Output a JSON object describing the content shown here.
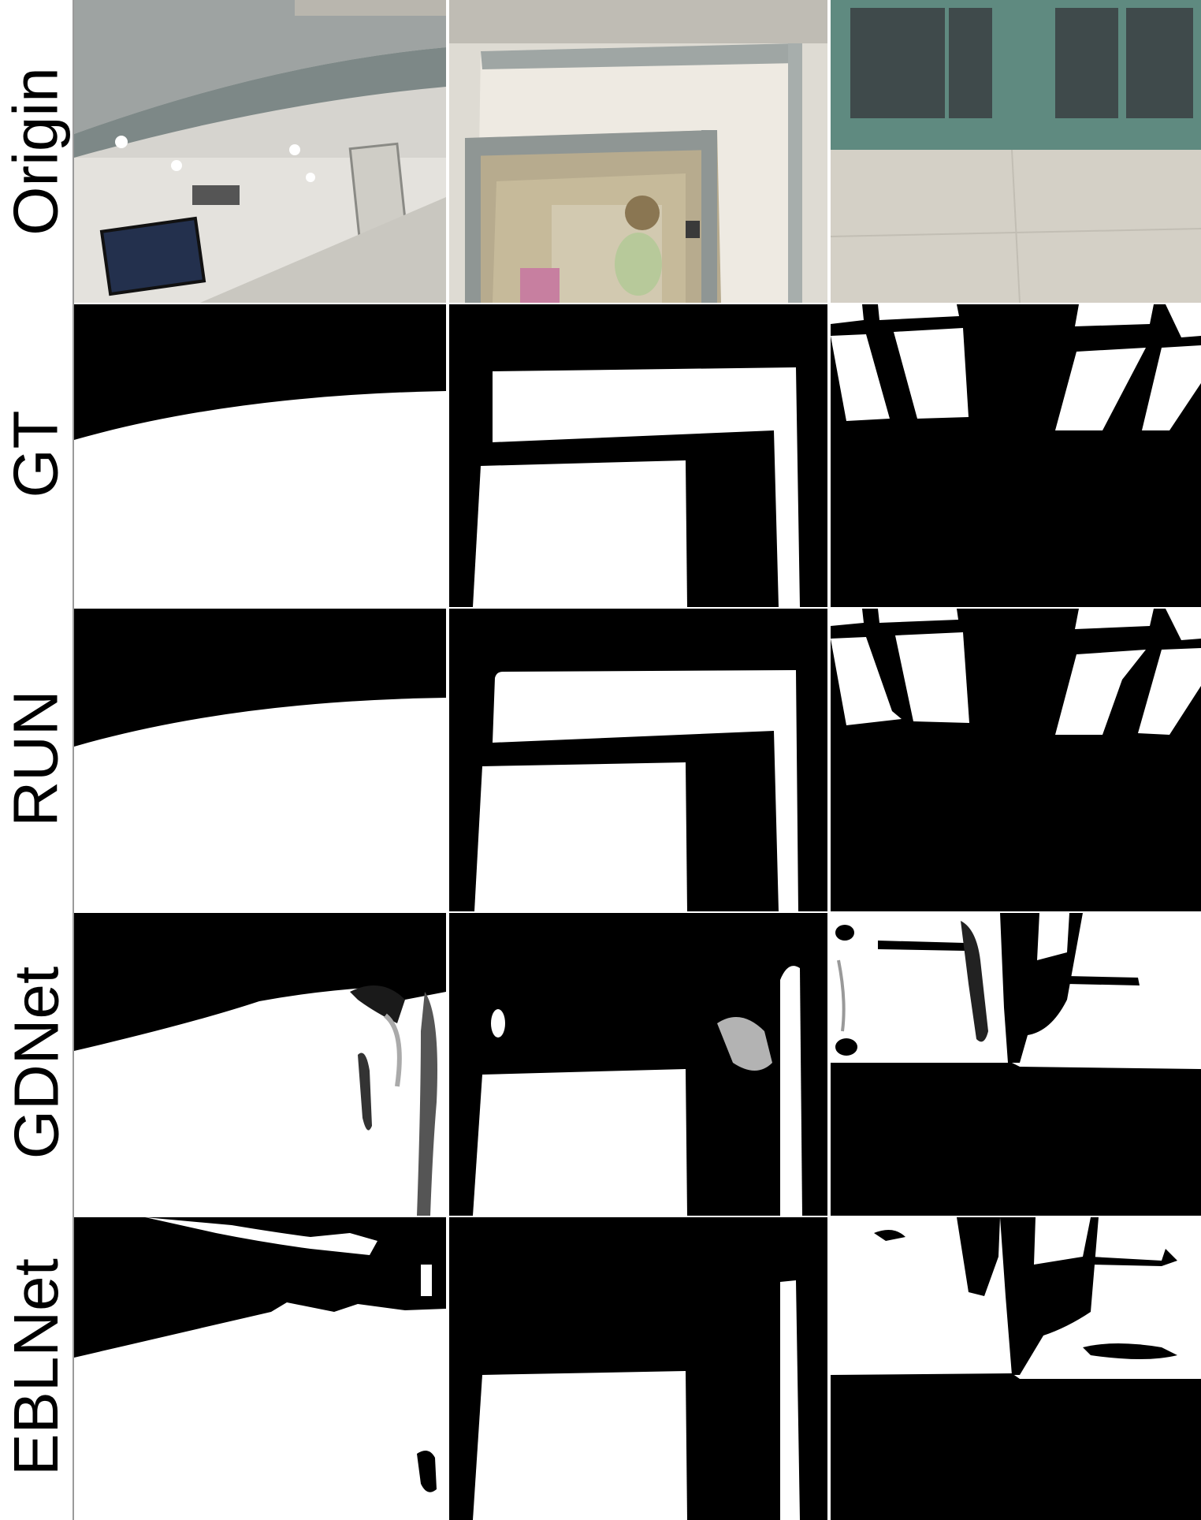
{
  "figure": {
    "rows": [
      {
        "label": "Origin"
      },
      {
        "label": "GT"
      },
      {
        "label": "RUN"
      },
      {
        "label": "GDNet"
      },
      {
        "label": "EBLNet"
      }
    ],
    "colors": {
      "mask_foreground": "#ffffff",
      "mask_background": "#000000"
    }
  }
}
